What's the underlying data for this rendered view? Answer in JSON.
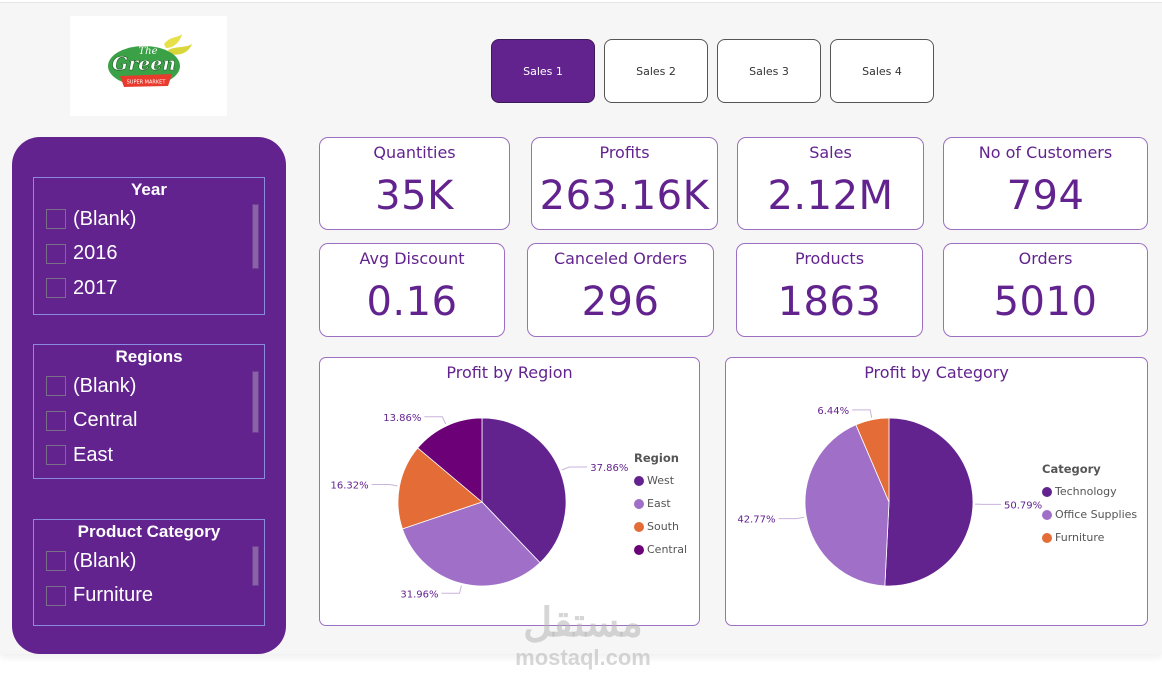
{
  "logo": {
    "line1": "The",
    "line2": "Green",
    "tagline": "SUPER MARKET"
  },
  "nav": {
    "pages": [
      {
        "label": "Sales 1",
        "active": true
      },
      {
        "label": "Sales 2",
        "active": false
      },
      {
        "label": "Sales 3",
        "active": false
      },
      {
        "label": "Sales 4",
        "active": false
      }
    ]
  },
  "slicers": [
    {
      "title": "Year",
      "items": [
        "(Blank)",
        "2016",
        "2017"
      ]
    },
    {
      "title": "Regions",
      "items": [
        "(Blank)",
        "Central",
        "East"
      ]
    },
    {
      "title": "Product Category",
      "items": [
        "(Blank)",
        "Furniture"
      ]
    }
  ],
  "kpis": [
    {
      "label": "Quantities",
      "value": "35K"
    },
    {
      "label": "Profits",
      "value": "263.16K"
    },
    {
      "label": "Sales",
      "value": "2.12M"
    },
    {
      "label": "No of Customers",
      "value": "794"
    },
    {
      "label": "Avg Discount",
      "value": "0.16"
    },
    {
      "label": "Canceled Orders",
      "value": "296"
    },
    {
      "label": "Products",
      "value": "1863"
    },
    {
      "label": "Orders",
      "value": "5010"
    }
  ],
  "colors": {
    "brand_purple": "#63238f",
    "light_purple": "#a070c8",
    "orange": "#e36c37",
    "dark_purple": "#6b0077"
  },
  "chart_data": [
    {
      "type": "pie",
      "title": "Profit by Region",
      "legend_title": "Region",
      "legend_position": "right",
      "categories": [
        "West",
        "East",
        "South",
        "Central"
      ],
      "values": [
        37.86,
        31.96,
        16.32,
        13.86
      ],
      "labels": [
        "37.86%",
        "31.96%",
        "16.32%",
        "13.86%"
      ],
      "colors": [
        "#63238f",
        "#a070c8",
        "#e36c37",
        "#6b0077"
      ]
    },
    {
      "type": "pie",
      "title": "Profit by Category",
      "legend_title": "Category",
      "legend_position": "right",
      "categories": [
        "Technology",
        "Office Supplies",
        "Furniture"
      ],
      "values": [
        50.79,
        42.77,
        6.44
      ],
      "labels": [
        "50.79%",
        "42.77%",
        "6.44%"
      ],
      "colors": [
        "#63238f",
        "#a070c8",
        "#e36c37"
      ]
    }
  ],
  "watermark": {
    "arabic": "مستقل",
    "latin": "mostaql.com"
  }
}
